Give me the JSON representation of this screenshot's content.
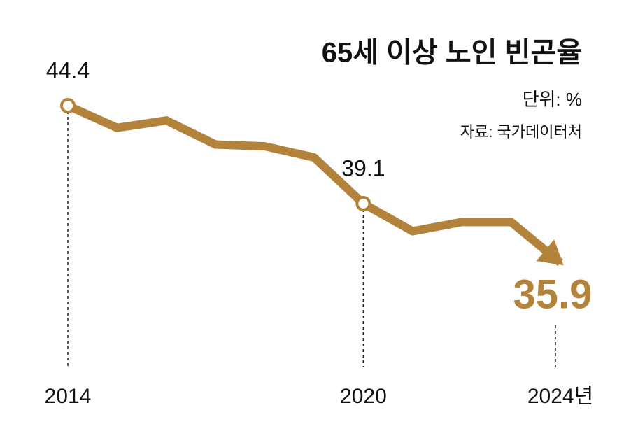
{
  "chart_data": {
    "type": "line",
    "title": "65세 이상 노인 빈곤율",
    "subtitle": "단위: %",
    "source": "자료: 국가데이터처",
    "categories": [
      "2014",
      null,
      null,
      null,
      null,
      null,
      "2020",
      null,
      null,
      null,
      "2024년"
    ],
    "values": [
      44.4,
      43.2,
      43.6,
      42.3,
      42.2,
      41.6,
      39.1,
      37.6,
      38.1,
      38.1,
      35.9
    ],
    "color": "#b3833b",
    "ylim": [
      34,
      46
    ]
  }
}
